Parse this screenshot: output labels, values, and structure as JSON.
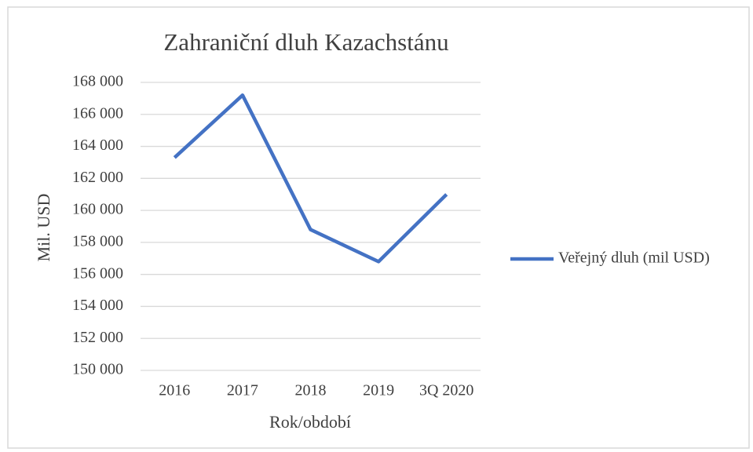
{
  "chart_data": {
    "type": "line",
    "title": "Zahraniční dluh Kazachstánu",
    "xlabel": "Rok/období",
    "ylabel": "Mil. USD",
    "categories": [
      "2016",
      "2017",
      "2018",
      "2019",
      "3Q 2020"
    ],
    "series": [
      {
        "name": "Veřejný dluh (mil USD)",
        "color": "#4472c4",
        "values": [
          163300,
          167200,
          158800,
          156800,
          161000
        ]
      }
    ],
    "ylim": [
      150000,
      168000
    ],
    "yticks": [
      {
        "value": 150000,
        "label": "150 000"
      },
      {
        "value": 152000,
        "label": "152 000"
      },
      {
        "value": 154000,
        "label": "154 000"
      },
      {
        "value": 156000,
        "label": "156 000"
      },
      {
        "value": 158000,
        "label": "158 000"
      },
      {
        "value": 160000,
        "label": "160 000"
      },
      {
        "value": 162000,
        "label": "162 000"
      },
      {
        "value": 164000,
        "label": "164 000"
      },
      {
        "value": 166000,
        "label": "166 000"
      },
      {
        "value": 168000,
        "label": "168 000"
      }
    ],
    "grid": true,
    "legend": "right"
  }
}
